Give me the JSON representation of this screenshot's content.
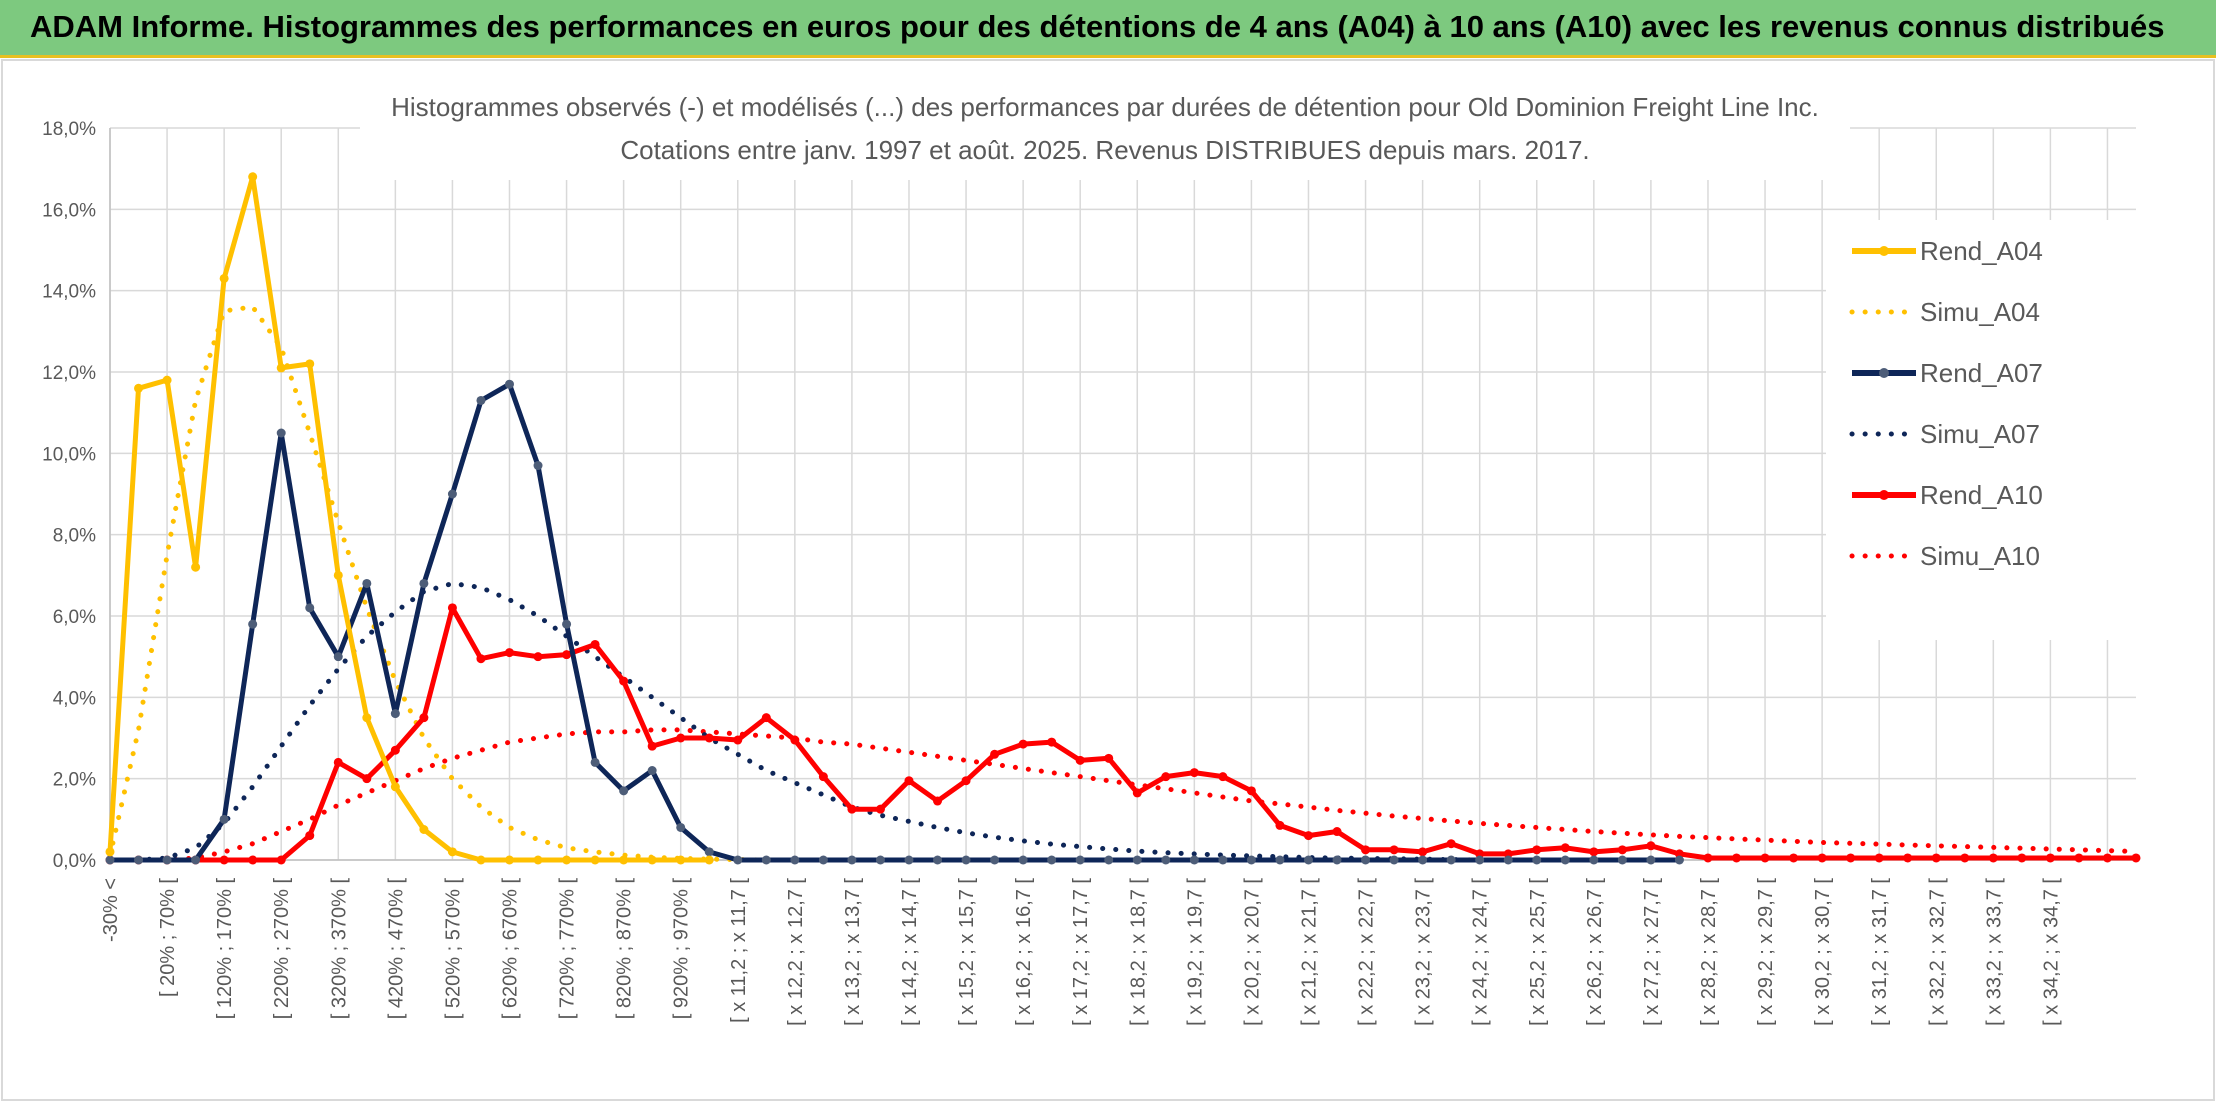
{
  "header": {
    "title": "ADAM Informe. Histogrammes des performances en euros pour des détentions de 4 ans (A04) à 10 ans (A10) avec les revenus connus distribués"
  },
  "chart_data": {
    "type": "line",
    "title": "Histogrammes observés (-) et modélisés (...) des performances par durées de détention pour Old Dominion Freight Line Inc.",
    "subtitle": "Cotations entre janv. 1997 et août. 2025. Revenus DISTRIBUES depuis mars. 2017.",
    "xlabel": "",
    "ylabel": "",
    "ylim": [
      0,
      18
    ],
    "y_ticks": [
      "0,0%",
      "2,0%",
      "4,0%",
      "6,0%",
      "8,0%",
      "10,0%",
      "12,0%",
      "14,0%",
      "16,0%",
      "18,0%"
    ],
    "grid": true,
    "legend_position": "right",
    "x_labels": [
      "-30% <",
      "[ 20% ; 70% [",
      "[ 120% ; 170% [",
      "[ 220% ; 270% [",
      "[ 320% ; 370% [",
      "[ 420% ; 470% [",
      "[ 520% ; 570% [",
      "[ 620% ; 670% [",
      "[ 720% ; 770% [",
      "[ 820% ; 870% [",
      "[ 920% ; 970% [",
      "[ x 11,2 ; x 11,7 [",
      "[ x 12,2 ; x 12,7 [",
      "[ x 13,2 ; x 13,7 [",
      "[ x 14,2 ; x 14,7 [",
      "[ x 15,2 ; x 15,7 [",
      "[ x 16,2 ; x 16,7 [",
      "[ x 17,2 ; x 17,7 [",
      "[ x 18,2 ; x 18,7 [",
      "[ x 19,2 ; x 19,7 [",
      "[ x 20,2 ; x 20,7 [",
      "[ x 21,2 ; x 21,7 [",
      "[ x 22,2 ; x 22,7 [",
      "[ x 23,2 ; x 23,7 [",
      "[ x 24,2 ; x 24,7 [",
      "[ x 25,2 ; x 25,7 [",
      "[ x 26,2 ; x 26,7 [",
      "[ x 27,2 ; x 27,7 [",
      "[ x 28,2 ; x 28,7 [",
      "[ x 29,2 ; x 29,7 [",
      "[ x 30,2 ; x 30,7 [",
      "[ x 31,2 ; x 31,7 [",
      "[ x 32,2 ; x 32,7 [",
      "[ x 33,2 ; x 33,7 [",
      "[ x 34,2 ; x 34,7 ["
    ],
    "series": [
      {
        "name": "Rend_A04",
        "style": "solid",
        "color": "#ffc000",
        "markers": true,
        "values": [
          0.2,
          11.6,
          11.8,
          7.2,
          14.3,
          16.8,
          12.1,
          12.2,
          7.0,
          3.5,
          1.8,
          0.75,
          0.2,
          0.0,
          0.0,
          0.0,
          0.0,
          0.0,
          0.0,
          0.0,
          0.0,
          0.0
        ]
      },
      {
        "name": "Simu_A04",
        "style": "dotted",
        "color": "#ffc000",
        "markers": false,
        "values": [
          0.1,
          3.2,
          7.5,
          11.3,
          13.5,
          13.6,
          12.6,
          10.5,
          8.3,
          6.2,
          4.4,
          3.0,
          2.0,
          1.3,
          0.8,
          0.5,
          0.3,
          0.2,
          0.12,
          0.07,
          0.04,
          0.02,
          0.01,
          0.0
        ]
      },
      {
        "name": "Rend_A07",
        "style": "solid",
        "color": "#0e2658",
        "markers": true,
        "values": [
          0.0,
          0.0,
          0.0,
          0.0,
          1.0,
          5.8,
          10.5,
          6.2,
          5.0,
          6.8,
          3.6,
          6.8,
          9.0,
          11.3,
          11.7,
          9.7,
          5.8,
          2.4,
          1.7,
          2.2,
          0.8,
          0.2,
          0.0,
          0.0,
          0.0,
          0.0,
          0.0,
          0.0,
          0.0,
          0.0,
          0.0,
          0.0,
          0.0,
          0.0,
          0.0,
          0.0,
          0.0,
          0.0,
          0.0,
          0.0,
          0.0,
          0.0,
          0.0,
          0.0,
          0.0,
          0.0,
          0.0,
          0.0,
          0.0,
          0.0,
          0.0,
          0.0,
          0.0,
          0.0,
          0.0,
          0.0
        ]
      },
      {
        "name": "Simu_A07",
        "style": "dotted",
        "color": "#0e2658",
        "markers": false,
        "values": [
          0.0,
          0.0,
          0.05,
          0.3,
          0.9,
          1.8,
          2.8,
          3.8,
          4.7,
          5.5,
          6.1,
          6.6,
          6.8,
          6.7,
          6.4,
          6.0,
          5.5,
          5.0,
          4.5,
          4.0,
          3.5,
          3.0,
          2.6,
          2.2,
          1.9,
          1.6,
          1.3,
          1.1,
          0.95,
          0.8,
          0.67,
          0.56,
          0.47,
          0.39,
          0.33,
          0.27,
          0.22,
          0.18,
          0.15,
          0.12,
          0.1,
          0.08,
          0.06,
          0.05,
          0.04,
          0.03,
          0.02,
          0.01,
          0.0
        ]
      },
      {
        "name": "Rend_A10",
        "style": "solid",
        "color": "#ff0000",
        "markers": true,
        "values": [
          0.0,
          0.0,
          0.0,
          0.0,
          0.0,
          0.0,
          0.0,
          0.6,
          2.4,
          2.0,
          2.7,
          3.5,
          6.2,
          4.95,
          5.1,
          5.0,
          5.05,
          5.3,
          4.4,
          2.8,
          3.0,
          3.0,
          2.95,
          3.5,
          2.95,
          2.05,
          1.25,
          1.25,
          1.95,
          1.45,
          1.95,
          2.6,
          2.85,
          2.9,
          2.45,
          2.5,
          1.65,
          2.05,
          2.15,
          2.05,
          1.7,
          0.85,
          0.6,
          0.7,
          0.25,
          0.25,
          0.2,
          0.4,
          0.15,
          0.15,
          0.25,
          0.3,
          0.2,
          0.25,
          0.35,
          0.15,
          0.05,
          0.05,
          0.05,
          0.05,
          0.05,
          0.05,
          0.05,
          0.05,
          0.05,
          0.05,
          0.05,
          0.05,
          0.05,
          0.05,
          0.05,
          0.05
        ]
      },
      {
        "name": "Simu_A10",
        "style": "dotted",
        "color": "#ff0000",
        "markers": false,
        "values": [
          0.0,
          0.0,
          0.0,
          0.05,
          0.2,
          0.4,
          0.7,
          1.0,
          1.35,
          1.65,
          1.95,
          2.25,
          2.5,
          2.7,
          2.9,
          3.0,
          3.1,
          3.15,
          3.15,
          3.2,
          3.2,
          3.15,
          3.1,
          3.05,
          3.0,
          2.9,
          2.85,
          2.75,
          2.65,
          2.55,
          2.45,
          2.35,
          2.25,
          2.15,
          2.05,
          1.95,
          1.85,
          1.75,
          1.65,
          1.55,
          1.45,
          1.38,
          1.3,
          1.22,
          1.15,
          1.08,
          1.02,
          0.96,
          0.9,
          0.85,
          0.8,
          0.75,
          0.7,
          0.66,
          0.62,
          0.58,
          0.55,
          0.52,
          0.49,
          0.46,
          0.43,
          0.41,
          0.39,
          0.37,
          0.35,
          0.33,
          0.31,
          0.29,
          0.27,
          0.25,
          0.23,
          0.21
        ]
      }
    ]
  }
}
